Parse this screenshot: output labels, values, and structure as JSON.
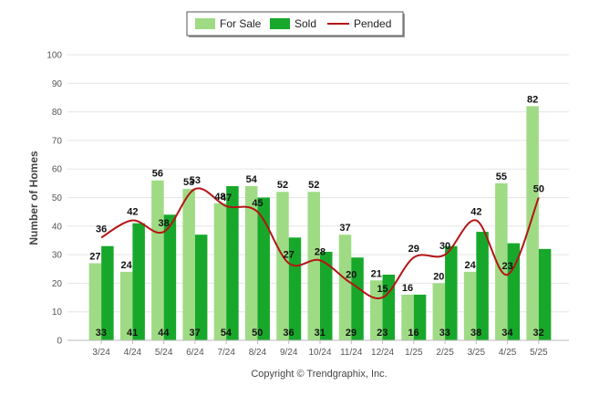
{
  "chart_data": {
    "type": "bar",
    "ylabel": "Number of Homes",
    "ylim": [
      0,
      100
    ],
    "yticks": [
      0,
      10,
      20,
      30,
      40,
      50,
      60,
      70,
      80,
      90,
      100
    ],
    "grid": true,
    "legend_position": "top-center",
    "categories": [
      "3/24",
      "4/24",
      "5/24",
      "6/24",
      "7/24",
      "8/24",
      "9/24",
      "10/24",
      "11/24",
      "12/24",
      "1/25",
      "2/25",
      "3/25",
      "4/25",
      "5/25"
    ],
    "series": [
      {
        "name": "For Sale",
        "type": "bar",
        "color": "#9fdb84",
        "values": [
          27,
          24,
          56,
          53,
          48,
          54,
          52,
          52,
          37,
          21,
          16,
          20,
          24,
          55,
          82
        ]
      },
      {
        "name": "Sold",
        "type": "bar",
        "color": "#17a82b",
        "values": [
          33,
          41,
          44,
          37,
          54,
          50,
          36,
          31,
          29,
          23,
          16,
          33,
          38,
          34,
          32
        ]
      },
      {
        "name": "Pended",
        "type": "line",
        "color": "#b31515",
        "values": [
          36,
          42,
          38,
          53,
          47,
          45,
          27,
          28,
          20,
          15,
          29,
          30,
          42,
          23,
          50
        ]
      }
    ],
    "footer": "Copyright © Trendgraphix, Inc."
  }
}
